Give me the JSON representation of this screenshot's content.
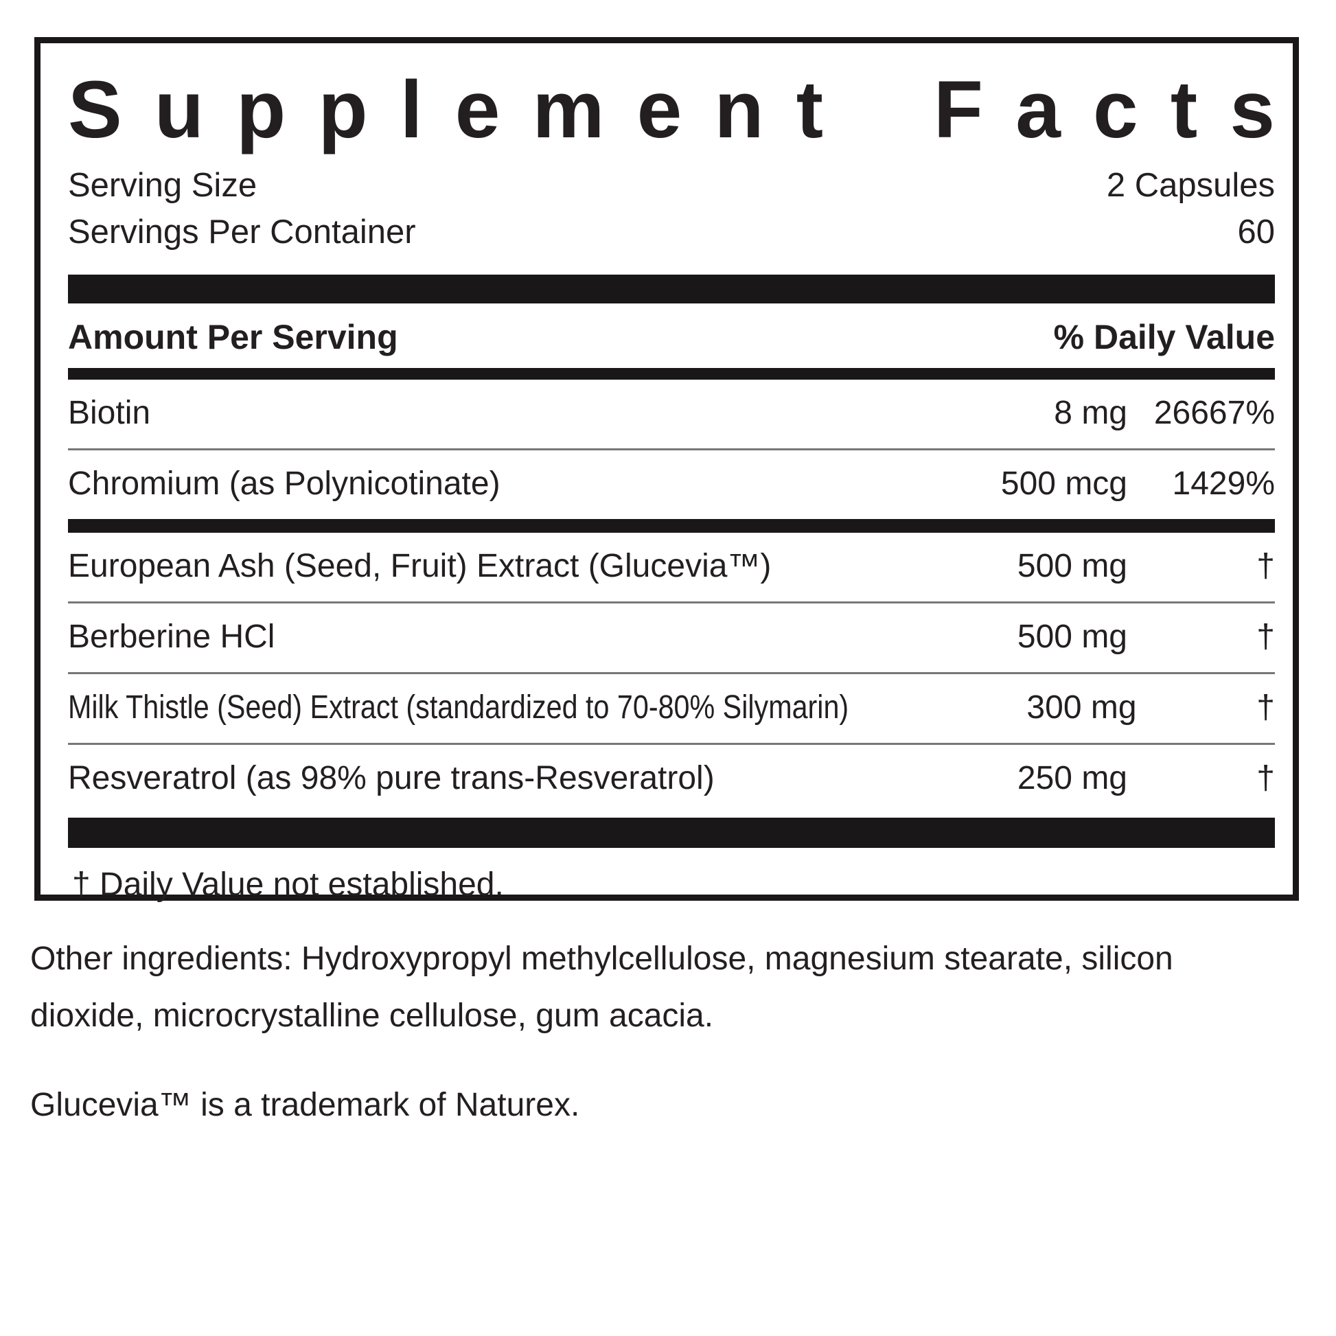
{
  "panel": {
    "title_words": [
      "Supplement",
      "Facts"
    ],
    "serving": {
      "size_label": "Serving Size",
      "size_value": "2 Capsules",
      "per_container_label": "Servings Per Container",
      "per_container_value": "60"
    },
    "header": {
      "amount_label": "Amount Per Serving",
      "dv_label": "% Daily Value"
    },
    "rows": [
      {
        "name": "Biotin",
        "amount": "8 mg",
        "dv": "26667%"
      },
      {
        "name": "Chromium (as Polynicotinate)",
        "amount": "500 mcg",
        "dv": "1429%"
      },
      {
        "name": "European Ash (Seed, Fruit) Extract (Glucevia™)",
        "amount": "500 mg",
        "dv": "†"
      },
      {
        "name": "Berberine HCl",
        "amount": "500 mg",
        "dv": "†"
      },
      {
        "name": "Milk Thistle (Seed) Extract (standardized to 70-80% Silymarin)",
        "amount": "300 mg",
        "dv": "†"
      },
      {
        "name": "Resveratrol (as 98% pure trans-Resveratrol)",
        "amount": "250 mg",
        "dv": "†"
      }
    ],
    "footnote": "† Daily Value not established."
  },
  "below": {
    "other_ingredients": "Other ingredients: Hydroxypropyl methylcellulose, magnesium stearate, silicon dioxide, microcrystalline cellulose, gum acacia.",
    "trademark_note": "Glucevia™ is a trademark of Naturex."
  },
  "colors": {
    "ink": "#231f20",
    "bar": "#1a1718",
    "separator": "#76777a",
    "background": "#ffffff"
  }
}
